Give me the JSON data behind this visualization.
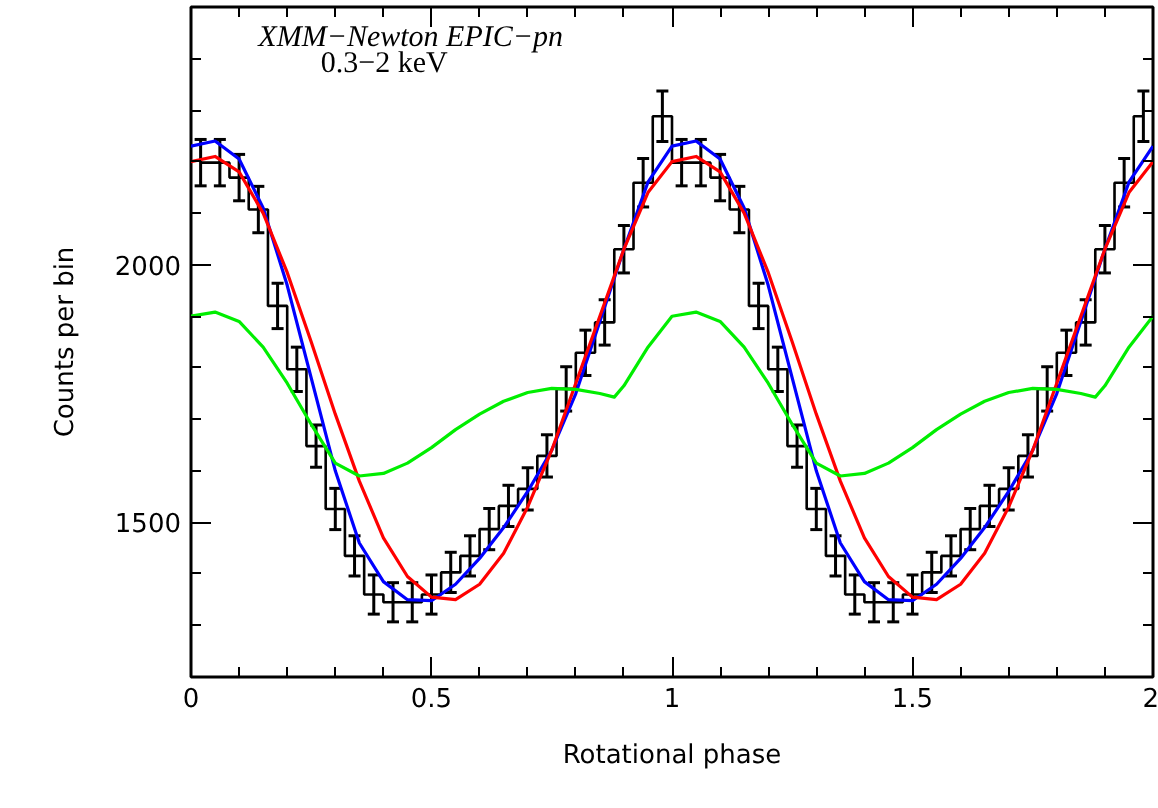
{
  "chart_data": {
    "type": "step",
    "xlabel": "Rotational phase",
    "ylabel": "Counts per bin",
    "annotations": [
      "XMM−Newton EPIC−pn",
      "0.3−2 keV"
    ],
    "xlim": [
      0,
      2
    ],
    "ylim": [
      1200,
      2500
    ],
    "xticks": [
      0,
      {
        "value": 0.1,
        "label": null
      },
      {
        "value": 0.2,
        "label": null
      },
      {
        "value": 0.3,
        "label": null
      },
      {
        "value": 0.4,
        "label": null
      },
      0.5,
      {
        "value": 0.6,
        "label": null
      },
      {
        "value": 0.7,
        "label": null
      },
      {
        "value": 0.8,
        "label": null
      },
      {
        "value": 0.9,
        "label": null
      },
      1,
      {
        "value": 1.1,
        "label": null
      },
      {
        "value": 1.2,
        "label": null
      },
      {
        "value": 1.3,
        "label": null
      },
      {
        "value": 1.4,
        "label": null
      },
      1.5,
      {
        "value": 1.6,
        "label": null
      },
      {
        "value": 1.7,
        "label": null
      },
      {
        "value": 1.8,
        "label": null
      },
      {
        "value": 1.9,
        "label": null
      },
      2
    ],
    "yticks": [
      {
        "value": 1200,
        "label": null
      },
      {
        "value": 1300,
        "label": null
      },
      {
        "value": 1400,
        "label": null
      },
      1500,
      {
        "value": 1600,
        "label": null
      },
      {
        "value": 1700,
        "label": null
      },
      {
        "value": 1800,
        "label": null
      },
      {
        "value": 1900,
        "label": null
      },
      2000,
      {
        "value": 2100,
        "label": null
      },
      {
        "value": 2200,
        "label": null
      },
      {
        "value": 2300,
        "label": null
      },
      {
        "value": 2400,
        "label": null
      }
    ],
    "grid": false,
    "marker": "none",
    "color": "#000000",
    "x": [
      0.02,
      0.06,
      0.1,
      0.14,
      0.18,
      0.22,
      0.26,
      0.3,
      0.34,
      0.38,
      0.42,
      0.46,
      0.5,
      0.54,
      0.58,
      0.62,
      0.66,
      0.7,
      0.74,
      0.78,
      0.82,
      0.86,
      0.9,
      0.94,
      0.98,
      1.02,
      1.06,
      1.1,
      1.14,
      1.18,
      1.22,
      1.26,
      1.3,
      1.34,
      1.38,
      1.42,
      1.46,
      1.5,
      1.54,
      1.58,
      1.62,
      1.66,
      1.7,
      1.74,
      1.78,
      1.82,
      1.86,
      1.9,
      1.94,
      1.98
    ],
    "values": [
      2198,
      2198,
      2169,
      2107,
      1920,
      1797,
      1648,
      1526,
      1435,
      1360,
      1345,
      1345,
      1360,
      1403,
      1435,
      1487,
      1532,
      1565,
      1629,
      1759,
      1829,
      1888,
      2030,
      2159,
      2288,
      2198,
      2198,
      2169,
      2107,
      1920,
      1797,
      1648,
      1526,
      1435,
      1360,
      1345,
      1345,
      1360,
      1403,
      1435,
      1487,
      1532,
      1565,
      1629,
      1759,
      1829,
      1888,
      2030,
      2159,
      2288
    ],
    "errors": [
      45,
      45,
      45,
      45,
      44,
      43,
      41,
      40,
      39,
      38,
      38,
      38,
      38,
      39,
      39,
      40,
      40,
      41,
      41,
      43,
      44,
      44,
      46,
      47,
      49,
      45,
      45,
      45,
      45,
      44,
      43,
      41,
      40,
      39,
      38,
      38,
      38,
      38,
      39,
      39,
      40,
      40,
      41,
      41,
      43,
      44,
      44,
      46,
      47,
      49
    ],
    "series": [
      {
        "type": "line",
        "color": "#0000ff",
        "x": [
          0,
          0.05,
          0.1,
          0.15,
          0.2,
          0.25,
          0.3,
          0.35,
          0.4,
          0.45,
          0.5,
          0.55,
          0.6,
          0.65,
          0.7,
          0.75,
          0.8,
          0.85,
          0.9,
          0.95,
          1.0,
          1.05,
          1.1,
          1.15,
          1.2,
          1.25,
          1.3,
          1.35,
          1.4,
          1.45,
          1.5,
          1.55,
          1.6,
          1.65,
          1.7,
          1.75,
          1.8,
          1.85,
          1.9,
          1.95,
          2.0
        ],
        "values": [
          2230,
          2240,
          2205,
          2110,
          1960,
          1780,
          1600,
          1460,
          1385,
          1350,
          1348,
          1380,
          1430,
          1490,
          1560,
          1640,
          1750,
          1890,
          2030,
          2160,
          2230,
          2240,
          2205,
          2110,
          1960,
          1780,
          1600,
          1460,
          1385,
          1350,
          1348,
          1380,
          1430,
          1490,
          1560,
          1640,
          1750,
          1890,
          2030,
          2160,
          2230
        ]
      },
      {
        "type": "line",
        "color": "#ff0000",
        "x": [
          0,
          0.05,
          0.1,
          0.15,
          0.2,
          0.25,
          0.3,
          0.35,
          0.4,
          0.45,
          0.5,
          0.55,
          0.6,
          0.65,
          0.7,
          0.75,
          0.8,
          0.85,
          0.9,
          0.95,
          1.0,
          1.05,
          1.1,
          1.15,
          1.2,
          1.25,
          1.3,
          1.35,
          1.4,
          1.45,
          1.5,
          1.55,
          1.6,
          1.65,
          1.7,
          1.75,
          1.8,
          1.85,
          1.9,
          1.95,
          2.0
        ],
        "values": [
          2200,
          2210,
          2180,
          2100,
          1985,
          1850,
          1710,
          1580,
          1470,
          1395,
          1355,
          1350,
          1380,
          1440,
          1530,
          1640,
          1770,
          1900,
          2030,
          2140,
          2200,
          2210,
          2180,
          2100,
          1985,
          1850,
          1710,
          1580,
          1470,
          1395,
          1355,
          1350,
          1380,
          1440,
          1530,
          1640,
          1770,
          1900,
          2030,
          2140,
          2200
        ]
      },
      {
        "type": "line",
        "color": "#00ee00",
        "x": [
          0,
          0.05,
          0.1,
          0.15,
          0.2,
          0.25,
          0.3,
          0.35,
          0.4,
          0.45,
          0.5,
          0.55,
          0.6,
          0.65,
          0.7,
          0.75,
          0.8,
          0.85,
          0.88,
          0.9,
          0.95,
          1.0,
          1.05,
          1.1,
          1.15,
          1.2,
          1.25,
          1.3,
          1.35,
          1.4,
          1.45,
          1.5,
          1.55,
          1.6,
          1.65,
          1.7,
          1.75,
          1.8,
          1.85,
          1.88,
          1.9,
          1.95,
          2.0
        ],
        "values": [
          1900,
          1908,
          1890,
          1840,
          1770,
          1690,
          1615,
          1590,
          1595,
          1615,
          1645,
          1680,
          1710,
          1735,
          1752,
          1760,
          1758,
          1750,
          1743,
          1765,
          1840,
          1900,
          1908,
          1890,
          1840,
          1770,
          1690,
          1615,
          1590,
          1595,
          1615,
          1645,
          1680,
          1710,
          1735,
          1752,
          1760,
          1758,
          1750,
          1743,
          1765,
          1840,
          1900
        ]
      }
    ]
  }
}
